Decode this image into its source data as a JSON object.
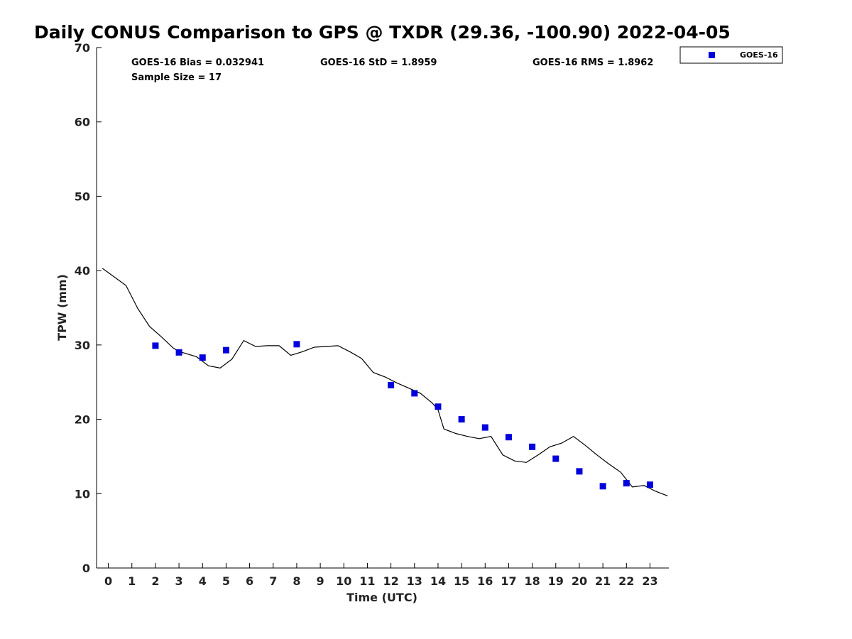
{
  "chart_data": {
    "type": "scatter",
    "title": "Daily CONUS Comparison to GPS @ TXDR (29.36, -100.90) 2022-04-05",
    "xlabel": "Time (UTC)",
    "ylabel": "TPW (mm)",
    "xlim": [
      -0.5,
      23.8
    ],
    "ylim": [
      0,
      70
    ],
    "x_ticks": [
      0,
      1,
      2,
      3,
      4,
      5,
      6,
      7,
      8,
      9,
      10,
      11,
      12,
      13,
      14,
      15,
      16,
      17,
      18,
      19,
      20,
      21,
      22,
      23
    ],
    "y_ticks": [
      0,
      10,
      20,
      30,
      40,
      50,
      60,
      70
    ],
    "grid": false,
    "stats": {
      "bias": "GOES-16 Bias = 0.032941",
      "std": "GOES-16 StD = 1.8959",
      "rms": "GOES-16 RMS = 1.8962",
      "sample": "Sample Size = 17"
    },
    "legend": {
      "placement": "top-right-outside",
      "entries": [
        "GOES-16"
      ]
    },
    "series": [
      {
        "name": "GOES-16",
        "style": "square-markers",
        "color": "#0000dd",
        "x": [
          2,
          3,
          4,
          5,
          8,
          12,
          13,
          14,
          15,
          16,
          17,
          18,
          19,
          20,
          21,
          22,
          23
        ],
        "y": [
          29.9,
          29.0,
          28.3,
          29.3,
          30.1,
          24.6,
          23.5,
          21.7,
          20.0,
          18.9,
          17.6,
          16.3,
          14.7,
          13.0,
          11.0,
          11.4,
          11.2
        ]
      },
      {
        "style": "line",
        "color": "#000000",
        "x": [
          -0.25,
          0.75,
          1.25,
          1.75,
          2.25,
          2.75,
          3.0,
          3.25,
          3.75,
          4.25,
          4.75,
          5.25,
          5.75,
          6.25,
          6.75,
          7.25,
          7.75,
          8.25,
          8.75,
          9.25,
          9.75,
          10.25,
          10.75,
          11.25,
          11.75,
          12.25,
          12.75,
          13.25,
          13.75,
          14.0,
          14.25,
          14.75,
          15.25,
          15.75,
          16.25,
          16.75,
          17.25,
          17.75,
          18.25,
          18.75,
          19.25,
          19.75,
          20.25,
          20.75,
          21.25,
          21.75,
          22.0,
          22.25,
          22.75,
          23.25,
          23.75
        ],
        "y": [
          40.3,
          38.0,
          34.9,
          32.5,
          31.1,
          29.6,
          29.1,
          28.9,
          28.4,
          27.2,
          26.9,
          28.1,
          30.6,
          29.8,
          29.9,
          29.9,
          28.6,
          29.1,
          29.7,
          29.8,
          29.9,
          29.1,
          28.2,
          26.3,
          25.7,
          24.9,
          24.2,
          23.5,
          22.2,
          21.3,
          18.7,
          18.1,
          17.7,
          17.4,
          17.7,
          15.2,
          14.4,
          14.2,
          15.2,
          16.3,
          16.8,
          17.7,
          16.5,
          15.2,
          14.0,
          12.9,
          11.9,
          10.9,
          11.1,
          10.3,
          9.7
        ]
      }
    ]
  }
}
